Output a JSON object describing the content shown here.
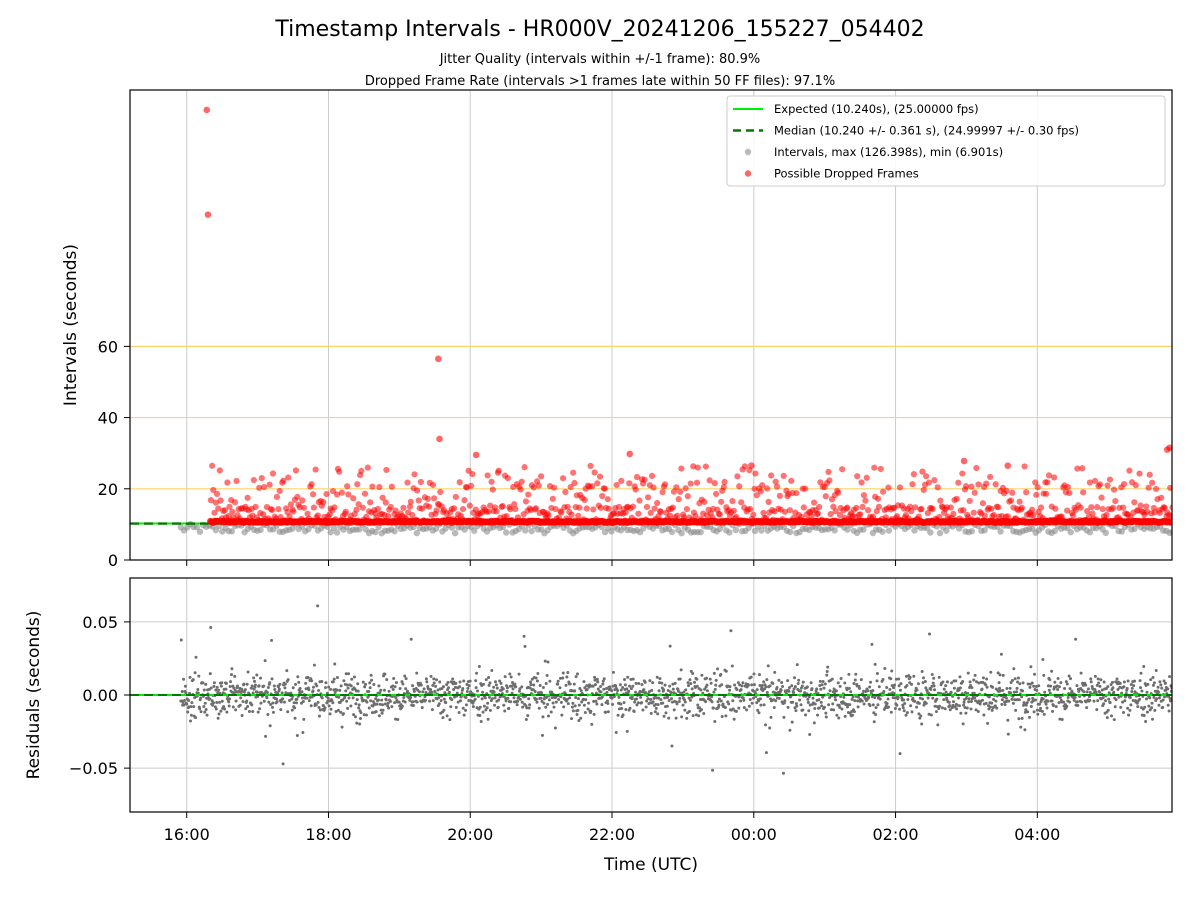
{
  "chart_data": [
    {
      "type": "scatter",
      "title": "Timestamp Intervals - HR000V_20241206_155227_054402",
      "subtitle_lines": [
        "Jitter Quality (intervals within +/-1 frame): 80.9%",
        "Dropped Frame Rate (intervals >1 frames late within 50 FF files): 97.1%"
      ],
      "ylabel": "Intervals (seconds)",
      "ylim": [
        0,
        132
      ],
      "xlim_hours": [
        15.2,
        29.9
      ],
      "yticks": [
        {
          "value": 0,
          "label": "0"
        },
        {
          "value": 20,
          "label": "20"
        },
        {
          "value": 40,
          "label": "40"
        },
        {
          "value": 60,
          "label": "60"
        }
      ],
      "reference_lines": [
        20,
        40,
        60
      ],
      "reference_line_color": "#ffd36b",
      "expected_value": 10.24,
      "median_value": 10.24,
      "legend_position": "top-right",
      "legend": [
        {
          "label": "Expected (10.240s), (25.00000 fps)",
          "style": "solid-line",
          "color": "#00ee00"
        },
        {
          "label": "Median (10.240 +/- 0.361 s), (24.99997 +/- 0.30 fps)",
          "style": "dashed-line",
          "color": "#007a00"
        },
        {
          "label": "Intervals, max (126.398s), min (6.901s)",
          "style": "marker",
          "color": "#8c8c8c"
        },
        {
          "label": "Possible Dropped Frames",
          "style": "marker",
          "color": "#ff0000"
        }
      ],
      "series": [
        {
          "name": "Possible Dropped Frames",
          "color": "#ff0000",
          "points": [
            {
              "x": "16:17",
              "y": 126.4
            },
            {
              "x": "16:18",
              "y": 97.0
            },
            {
              "x": "19:33",
              "y": 56.5
            },
            {
              "x": "19:34",
              "y": 34.0
            },
            {
              "x": "20:05",
              "y": 29.5
            },
            {
              "x": "22:15",
              "y": 29.8
            },
            {
              "x": "23:58",
              "y": 26.5
            },
            {
              "x": "02:58",
              "y": 27.8
            },
            {
              "x": "03:35",
              "y": 26.5
            },
            {
              "x": "05:50",
              "y": 31.0
            },
            {
              "x": "05:52",
              "y": 31.5
            }
          ],
          "band_range_y": [
            10.6,
            25.5
          ],
          "band_range_x": [
            "16:20",
            "05:55"
          ]
        },
        {
          "name": "Intervals",
          "color": "#8c8c8c",
          "band_range_y": [
            6.9,
            10.2
          ],
          "band_range_x": [
            "15:55",
            "05:55"
          ]
        }
      ]
    },
    {
      "type": "scatter",
      "xlabel": "Time (UTC)",
      "ylabel": "Residuals (seconds)",
      "ylim": [
        -0.08,
        0.08
      ],
      "xticks": [
        "16:00",
        "18:00",
        "20:00",
        "22:00",
        "00:00",
        "02:00",
        "04:00"
      ],
      "yticks": [
        {
          "value": 0.05,
          "label": "0.05"
        },
        {
          "value": 0.0,
          "label": "0.00"
        },
        {
          "value": -0.05,
          "label": "−0.05"
        }
      ],
      "series": [
        {
          "name": "Residuals",
          "color": "#6e6e6e",
          "band_range_y": [
            -0.08,
            0.08
          ],
          "band_range_x": [
            "15:55",
            "05:55"
          ]
        }
      ]
    }
  ]
}
